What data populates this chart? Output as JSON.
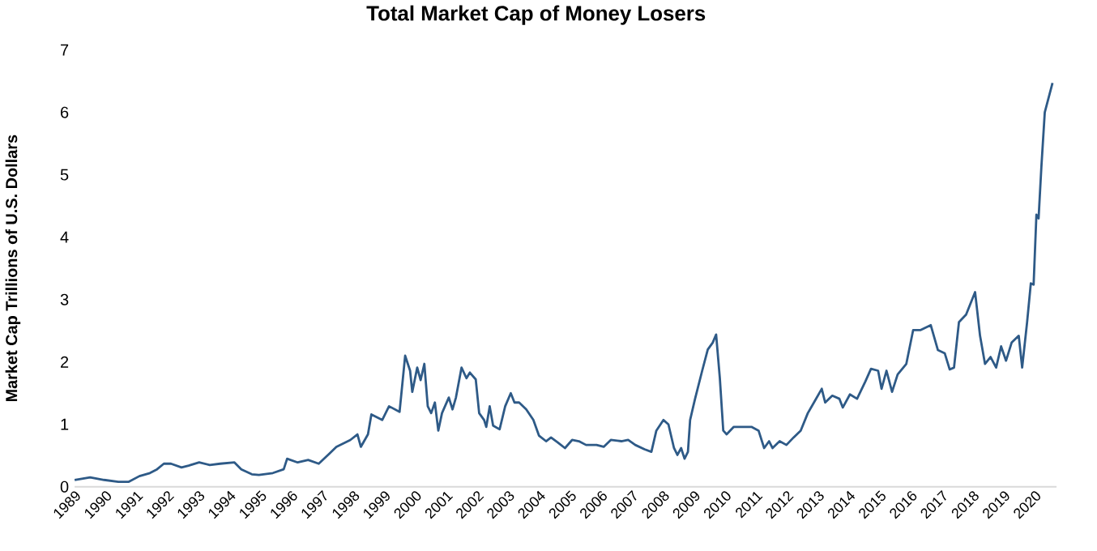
{
  "chart_data": {
    "type": "line",
    "title": "Total Market Cap of Money Losers",
    "ylabel": "Market Cap Trillions of U.S. Dollars",
    "color": "#2e5a87",
    "x": [
      1989.0,
      1989.5,
      1989.95,
      1990.41,
      1990.75,
      1991.09,
      1991.43,
      1991.66,
      1991.88,
      1992.11,
      1992.45,
      1992.68,
      1993.02,
      1993.36,
      1993.7,
      1994.16,
      1994.38,
      1994.72,
      1994.95,
      1995.4,
      1995.75,
      1995.86,
      1996.2,
      1996.54,
      1996.88,
      1997.22,
      1997.45,
      1997.9,
      1998.13,
      1998.24,
      1998.47,
      1998.58,
      1998.93,
      1999.15,
      1999.49,
      1999.67,
      1999.83,
      1999.9,
      2000.06,
      2000.17,
      2000.29,
      2000.4,
      2000.51,
      2000.63,
      2000.74,
      2000.86,
      2001.08,
      2001.2,
      2001.31,
      2001.49,
      2001.65,
      2001.76,
      2001.95,
      2002.06,
      2002.22,
      2002.29,
      2002.4,
      2002.51,
      2002.72,
      2002.9,
      2003.08,
      2003.2,
      2003.35,
      2003.58,
      2003.81,
      2003.99,
      2004.22,
      2004.38,
      2004.6,
      2004.83,
      2005.06,
      2005.28,
      2005.51,
      2005.85,
      2006.08,
      2006.31,
      2006.65,
      2006.87,
      2007.1,
      2007.4,
      2007.62,
      2007.78,
      2008.01,
      2008.17,
      2008.35,
      2008.46,
      2008.58,
      2008.69,
      2008.8,
      2008.87,
      2009.03,
      2009.26,
      2009.44,
      2009.6,
      2009.71,
      2009.83,
      2009.94,
      2010.05,
      2010.28,
      2010.62,
      2010.85,
      2011.08,
      2011.26,
      2011.42,
      2011.53,
      2011.76,
      2011.98,
      2012.21,
      2012.44,
      2012.67,
      2012.89,
      2013.12,
      2013.23,
      2013.46,
      2013.69,
      2013.8,
      2014.03,
      2014.26,
      2014.53,
      2014.71,
      2014.94,
      2015.05,
      2015.21,
      2015.39,
      2015.57,
      2015.85,
      2016.07,
      2016.3,
      2016.64,
      2016.87,
      2017.09,
      2017.25,
      2017.39,
      2017.55,
      2017.78,
      2018.07,
      2018.23,
      2018.39,
      2018.57,
      2018.75,
      2018.91,
      2019.07,
      2019.25,
      2019.48,
      2019.59,
      2019.75,
      2019.87,
      2019.96,
      2020.05,
      2020.12,
      2020.21,
      2020.32,
      2020.57
    ],
    "values": [
      0.11,
      0.15,
      0.11,
      0.08,
      0.08,
      0.17,
      0.22,
      0.28,
      0.37,
      0.37,
      0.31,
      0.34,
      0.39,
      0.35,
      0.37,
      0.39,
      0.28,
      0.2,
      0.19,
      0.22,
      0.28,
      0.45,
      0.39,
      0.43,
      0.37,
      0.53,
      0.64,
      0.75,
      0.84,
      0.64,
      0.84,
      1.16,
      1.07,
      1.29,
      1.2,
      2.1,
      1.86,
      1.52,
      1.91,
      1.71,
      1.97,
      1.29,
      1.18,
      1.35,
      0.9,
      1.18,
      1.43,
      1.24,
      1.43,
      1.91,
      1.74,
      1.83,
      1.72,
      1.18,
      1.07,
      0.96,
      1.29,
      0.98,
      0.92,
      1.29,
      1.5,
      1.35,
      1.35,
      1.24,
      1.07,
      0.82,
      0.73,
      0.79,
      0.71,
      0.62,
      0.75,
      0.73,
      0.67,
      0.67,
      0.64,
      0.75,
      0.73,
      0.75,
      0.67,
      0.6,
      0.56,
      0.9,
      1.07,
      1.0,
      0.62,
      0.51,
      0.62,
      0.45,
      0.56,
      1.07,
      1.41,
      1.86,
      2.2,
      2.31,
      2.44,
      1.74,
      0.9,
      0.84,
      0.96,
      0.96,
      0.96,
      0.9,
      0.62,
      0.73,
      0.62,
      0.73,
      0.67,
      0.79,
      0.9,
      1.18,
      1.37,
      1.57,
      1.35,
      1.46,
      1.41,
      1.27,
      1.48,
      1.41,
      1.69,
      1.89,
      1.86,
      1.57,
      1.86,
      1.52,
      1.8,
      1.97,
      2.51,
      2.51,
      2.59,
      2.19,
      2.14,
      1.88,
      1.91,
      2.64,
      2.76,
      3.12,
      2.42,
      1.97,
      2.08,
      1.91,
      2.25,
      2.02,
      2.31,
      2.42,
      1.91,
      2.64,
      3.26,
      3.24,
      4.36,
      4.3,
      5.12,
      6.0,
      6.47
    ],
    "xlim": [
      1989,
      2020.7
    ],
    "xticks": [
      1989,
      1990,
      1991,
      1992,
      1993,
      1994,
      1995,
      1996,
      1997,
      1998,
      1999,
      2000,
      2001,
      2002,
      2003,
      2004,
      2005,
      2006,
      2007,
      2008,
      2009,
      2010,
      2011,
      2012,
      2013,
      2014,
      2015,
      2016,
      2017,
      2018,
      2019,
      2020
    ],
    "ylim": [
      0,
      7
    ],
    "yticks": [
      0,
      1,
      2,
      3,
      4,
      5,
      6,
      7
    ]
  }
}
